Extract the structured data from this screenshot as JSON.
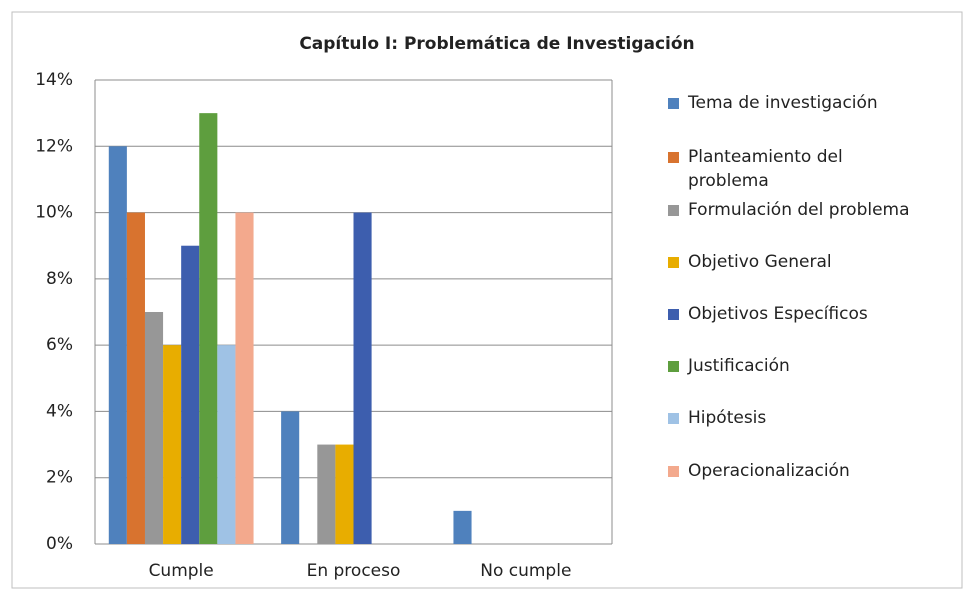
{
  "chart_data": {
    "type": "bar",
    "title": "Capítulo I: Problemática de Investigación",
    "categories": [
      "Cumple",
      "En proceso",
      "No cumple"
    ],
    "series": [
      {
        "name": "Tema de investigación",
        "color": "#4f81bd",
        "values": [
          12,
          4,
          1
        ]
      },
      {
        "name": "Planteamiento del problema",
        "color": "#d8732f",
        "values": [
          10,
          0,
          0
        ]
      },
      {
        "name": "Formulación del problema",
        "color": "#979797",
        "values": [
          7,
          3,
          0
        ]
      },
      {
        "name": "Objetivo General",
        "color": "#e8ad00",
        "values": [
          6,
          3,
          0
        ]
      },
      {
        "name": "Objetivos Específicos",
        "color": "#3d5eae",
        "values": [
          9,
          10,
          0
        ]
      },
      {
        "name": "Justificación",
        "color": "#5e9e3e",
        "values": [
          13,
          0,
          0
        ]
      },
      {
        "name": "Hipótesis",
        "color": "#9fc2e5",
        "values": [
          6,
          0,
          0
        ]
      },
      {
        "name": "Operacionalización",
        "color": "#f3a98d",
        "values": [
          10,
          0,
          0
        ]
      }
    ],
    "ylim": [
      0,
      14
    ],
    "yticks": [
      {
        "value": 0,
        "label": "0%"
      },
      {
        "value": 2,
        "label": "2%"
      },
      {
        "value": 4,
        "label": "4%"
      },
      {
        "value": 6,
        "label": "6%"
      },
      {
        "value": 8,
        "label": "8%"
      },
      {
        "value": 10,
        "label": "10%"
      },
      {
        "value": 12,
        "label": "12%"
      },
      {
        "value": 14,
        "label": "14%"
      }
    ],
    "grid": true,
    "legend": "right"
  }
}
